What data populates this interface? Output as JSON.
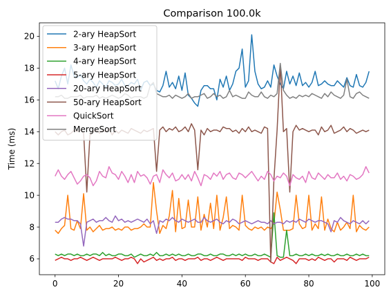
{
  "chart_data": {
    "type": "line",
    "title": "Comparison 100.0k",
    "xlabel": "",
    "ylabel": "Time (ms)",
    "xlim": [
      -4.95,
      103.95
    ],
    "ylim": [
      5.0,
      20.85
    ],
    "xticks": [
      0,
      20,
      40,
      60,
      80,
      100
    ],
    "yticks": [
      6,
      8,
      10,
      12,
      14,
      16,
      18,
      20
    ],
    "grid": false,
    "legend_position": "upper-left",
    "x": [
      0,
      1,
      2,
      3,
      4,
      5,
      6,
      7,
      8,
      9,
      10,
      11,
      12,
      13,
      14,
      15,
      16,
      17,
      18,
      19,
      20,
      21,
      22,
      23,
      24,
      25,
      26,
      27,
      28,
      29,
      30,
      31,
      32,
      33,
      34,
      35,
      36,
      37,
      38,
      39,
      40,
      41,
      42,
      43,
      44,
      45,
      46,
      47,
      48,
      49,
      50,
      51,
      52,
      53,
      54,
      55,
      56,
      57,
      58,
      59,
      60,
      61,
      62,
      63,
      64,
      65,
      66,
      67,
      68,
      69,
      70,
      71,
      72,
      73,
      74,
      75,
      76,
      77,
      78,
      79,
      80,
      81,
      82,
      83,
      84,
      85,
      86,
      87,
      88,
      89,
      90,
      91,
      92,
      93,
      94,
      95,
      96,
      97,
      98,
      99
    ],
    "series": [
      {
        "name": "2-ary HeapSort",
        "color": "#1f77b4",
        "values": [
          17.2,
          16.7,
          17.5,
          18.0,
          17.0,
          18.2,
          17.5,
          17.4,
          17.6,
          17.2,
          17.0,
          17.3,
          17.1,
          16.8,
          17.2,
          17.0,
          16.8,
          17.2,
          17.1,
          16.9,
          17.0,
          17.3,
          16.9,
          16.9,
          17.1,
          17.0,
          17.3,
          16.6,
          17.1,
          17.2,
          16.9,
          17.0,
          16.6,
          16.5,
          16.9,
          17.8,
          16.8,
          17.1,
          16.7,
          17.5,
          16.6,
          17.7,
          16.3,
          16.1,
          15.8,
          15.6,
          16.6,
          16.9,
          16.9,
          16.7,
          16.7,
          16.0,
          17.3,
          16.8,
          17.5,
          16.6,
          17.0,
          17.8,
          18.0,
          19.2,
          16.8,
          17.2,
          20.1,
          17.8,
          17.0,
          16.7,
          16.8,
          17.2,
          16.8,
          18.2,
          17.5,
          17.0,
          16.7,
          17.8,
          17.0,
          17.5,
          16.9,
          17.7,
          16.9,
          17.1,
          16.8,
          17.1,
          17.8,
          16.9,
          17.0,
          17.2,
          17.0,
          16.9,
          16.9,
          17.2,
          17.0,
          16.8,
          17.4,
          16.9,
          16.8,
          17.6,
          16.9,
          16.8,
          17.1,
          17.8
        ]
      },
      {
        "name": "3-ary HeapSort",
        "color": "#ff7f0e",
        "values": [
          7.8,
          7.6,
          7.9,
          8.1,
          10.0,
          7.9,
          7.8,
          8.4,
          7.9,
          10.1,
          7.8,
          8.0,
          7.7,
          7.9,
          8.1,
          7.8,
          7.9,
          7.9,
          8.0,
          7.8,
          7.9,
          7.8,
          8.0,
          8.0,
          7.8,
          7.9,
          7.9,
          8.0,
          8.2,
          8.0,
          8.0,
          10.8,
          9.0,
          7.6,
          8.1,
          7.9,
          8.7,
          10.3,
          7.7,
          9.8,
          7.9,
          8.0,
          9.7,
          8.0,
          8.0,
          9.9,
          7.8,
          8.8,
          8.0,
          9.5,
          7.9,
          10.0,
          7.8,
          8.6,
          9.9,
          7.9,
          8.1,
          8.0,
          7.8,
          10.0,
          8.1,
          7.9,
          7.8,
          8.0,
          7.9,
          8.0,
          7.8,
          8.0,
          7.9,
          8.2,
          10.2,
          9.1,
          7.8,
          7.8,
          7.8,
          7.9,
          10.0,
          8.2,
          7.9,
          8.0,
          10.0,
          7.8,
          8.2,
          7.9,
          9.9,
          7.8,
          8.5,
          7.9,
          7.7,
          8.3,
          7.8,
          8.0,
          8.3,
          7.9,
          10.0,
          7.7,
          8.1,
          7.9,
          7.8,
          8.0
        ]
      },
      {
        "name": "4-ary HeapSort",
        "color": "#2ca02c",
        "values": [
          6.3,
          6.2,
          6.3,
          6.2,
          6.3,
          6.3,
          6.2,
          6.3,
          6.2,
          6.2,
          6.3,
          6.2,
          6.3,
          6.3,
          6.2,
          6.4,
          6.2,
          6.3,
          6.2,
          6.2,
          6.3,
          6.3,
          6.2,
          6.2,
          6.3,
          6.1,
          6.2,
          6.3,
          6.2,
          6.2,
          6.3,
          6.2,
          6.4,
          6.2,
          6.2,
          6.3,
          6.2,
          6.3,
          6.2,
          6.3,
          6.2,
          6.2,
          6.3,
          6.2,
          6.2,
          6.3,
          6.3,
          6.2,
          6.2,
          6.3,
          6.2,
          6.2,
          6.3,
          6.3,
          6.2,
          6.2,
          6.3,
          6.2,
          6.3,
          6.2,
          6.3,
          6.2,
          6.2,
          6.3,
          6.2,
          6.2,
          6.3,
          6.2,
          6.1,
          8.9,
          6.2,
          6.1,
          6.1,
          7.8,
          6.2,
          6.2,
          6.3,
          6.2,
          6.2,
          6.3,
          6.2,
          6.3,
          6.2,
          6.2,
          6.3,
          6.2,
          6.3,
          6.2,
          6.2,
          6.3,
          6.2,
          6.2,
          6.3,
          6.2,
          6.2,
          6.3,
          6.2,
          6.3,
          6.2,
          6.2
        ]
      },
      {
        "name": "5-ary HeapSort",
        "color": "#d62728",
        "values": [
          5.9,
          6.0,
          6.1,
          6.0,
          6.0,
          5.9,
          6.0,
          6.0,
          6.1,
          6.0,
          5.9,
          6.0,
          6.1,
          6.0,
          5.9,
          6.0,
          6.0,
          6.0,
          6.0,
          6.1,
          6.0,
          5.9,
          6.0,
          6.0,
          6.1,
          6.0,
          5.7,
          6.0,
          5.8,
          5.9,
          6.0,
          6.1,
          5.9,
          6.0,
          5.9,
          6.0,
          6.0,
          6.1,
          5.9,
          6.0,
          6.0,
          5.9,
          6.0,
          6.0,
          6.0,
          6.1,
          5.9,
          6.0,
          6.0,
          5.9,
          6.0,
          6.1,
          6.0,
          5.9,
          6.0,
          6.0,
          6.0,
          6.0,
          6.0,
          5.9,
          6.1,
          6.0,
          6.0,
          6.0,
          5.9,
          6.0,
          6.0,
          6.0,
          5.8,
          5.7,
          6.1,
          5.9,
          6.0,
          6.1,
          6.0,
          5.9,
          5.7,
          6.0,
          6.0,
          6.0,
          5.9,
          6.0,
          5.9,
          6.1,
          6.0,
          5.9,
          6.0,
          6.0,
          5.8,
          6.0,
          6.0,
          6.0,
          5.9,
          6.1,
          6.0,
          5.9,
          6.0,
          6.0,
          6.0,
          6.1
        ]
      },
      {
        "name": "20-ary HeapSort",
        "color": "#9467bd",
        "values": [
          8.3,
          8.3,
          8.5,
          8.6,
          8.5,
          8.5,
          8.4,
          8.4,
          8.2,
          6.8,
          8.3,
          8.4,
          8.5,
          8.3,
          8.4,
          8.4,
          8.6,
          8.4,
          8.3,
          8.7,
          8.4,
          8.5,
          8.3,
          8.4,
          8.3,
          8.4,
          8.5,
          8.4,
          8.3,
          8.5,
          8.2,
          8.4,
          7.6,
          8.4,
          8.3,
          8.5,
          8.4,
          8.6,
          8.4,
          8.3,
          8.5,
          8.4,
          8.3,
          8.4,
          8.5,
          8.3,
          8.3,
          8.6,
          8.4,
          8.3,
          8.4,
          8.5,
          8.3,
          8.2,
          8.4,
          8.3,
          8.5,
          8.4,
          8.2,
          8.3,
          8.4,
          8.3,
          8.2,
          8.3,
          8.4,
          8.3,
          8.3,
          8.2,
          8.4,
          8.2,
          8.3,
          8.3,
          8.2,
          8.4,
          8.3,
          8.4,
          8.3,
          8.5,
          8.4,
          8.3,
          8.5,
          8.4,
          8.3,
          8.4,
          8.4,
          8.3,
          8.2,
          7.7,
          8.4,
          8.3,
          8.6,
          8.4,
          8.3,
          8.2,
          8.4,
          8.3,
          8.2,
          8.4,
          8.2,
          8.4
        ]
      },
      {
        "name": "50-ary HeapSort",
        "color": "#8c564b",
        "values": [
          14.0,
          13.8,
          14.0,
          14.1,
          13.8,
          13.9,
          14.1,
          14.0,
          14.1,
          13.9,
          10.2,
          13.8,
          14.0,
          14.1,
          13.9,
          14.1,
          14.0,
          14.2,
          13.8,
          14.1,
          13.9,
          14.1,
          14.0,
          13.9,
          14.2,
          14.1,
          14.0,
          13.9,
          14.1,
          14.0,
          14.1,
          14.2,
          11.5,
          14.1,
          14.3,
          14.0,
          14.2,
          14.1,
          14.3,
          14.0,
          14.1,
          14.3,
          14.0,
          14.5,
          14.1,
          11.6,
          14.1,
          13.8,
          14.2,
          14.0,
          14.1,
          14.1,
          14.0,
          14.3,
          14.2,
          14.2,
          14.0,
          14.1,
          13.9,
          14.2,
          14.0,
          14.3,
          14.0,
          14.1,
          14.0,
          13.9,
          14.3,
          14.2,
          5.8,
          11.0,
          14.1,
          18.2,
          14.0,
          14.2,
          10.2,
          14.0,
          14.4,
          14.1,
          14.2,
          14.1,
          14.0,
          14.1,
          14.1,
          13.8,
          14.3,
          14.0,
          14.1,
          14.4,
          13.9,
          14.0,
          14.1,
          14.3,
          14.0,
          14.2,
          14.1,
          13.9,
          14.0,
          14.1,
          14.0,
          14.1
        ]
      },
      {
        "name": "QuickSort",
        "color": "#e377c2",
        "values": [
          11.2,
          11.6,
          11.2,
          11.0,
          11.3,
          11.5,
          11.1,
          10.7,
          10.9,
          11.2,
          11.3,
          11.1,
          10.6,
          10.9,
          11.5,
          11.2,
          11.1,
          11.8,
          11.4,
          11.3,
          11.0,
          11.5,
          11.2,
          10.8,
          11.3,
          10.8,
          11.5,
          11.2,
          11.3,
          11.1,
          10.7,
          11.2,
          11.3,
          10.8,
          11.6,
          11.3,
          11.1,
          11.4,
          10.9,
          11.0,
          11.3,
          11.0,
          11.3,
          10.9,
          11.5,
          11.1,
          10.6,
          11.3,
          11.2,
          11.0,
          11.4,
          11.2,
          11.5,
          11.0,
          11.3,
          11.4,
          11.1,
          11.0,
          11.4,
          11.3,
          11.1,
          11.3,
          11.5,
          11.2,
          10.9,
          11.2,
          11.0,
          11.5,
          11.3,
          10.9,
          11.2,
          11.1,
          11.4,
          11.2,
          10.6,
          11.3,
          11.1,
          11.0,
          11.2,
          10.8,
          11.5,
          11.1,
          11.0,
          11.4,
          11.2,
          11.0,
          11.3,
          11.1,
          11.1,
          11.4,
          11.0,
          11.2,
          10.9,
          11.3,
          11.2,
          11.0,
          11.1,
          11.3,
          11.8,
          11.4
        ]
      },
      {
        "name": "MergeSort",
        "color": "#7f7f7f",
        "values": [
          16.2,
          16.2,
          16.3,
          16.1,
          16.1,
          16.2,
          16.2,
          16.2,
          16.3,
          16.1,
          16.2,
          16.2,
          16.2,
          16.3,
          16.1,
          16.2,
          16.1,
          16.2,
          16.3,
          16.2,
          16.1,
          16.2,
          16.4,
          16.3,
          16.1,
          16.2,
          16.2,
          16.2,
          16.1,
          16.2,
          16.9,
          17.1,
          16.4,
          16.3,
          16.2,
          16.2,
          16.3,
          16.1,
          16.3,
          16.2,
          16.1,
          16.2,
          16.4,
          16.1,
          16.2,
          16.2,
          16.3,
          16.4,
          16.1,
          16.2,
          16.4,
          16.2,
          16.3,
          16.1,
          16.2,
          16.6,
          16.2,
          16.3,
          16.2,
          16.1,
          16.1,
          16.5,
          16.3,
          16.2,
          16.2,
          16.5,
          16.2,
          16.1,
          16.3,
          16.2,
          16.4,
          18.3,
          16.6,
          16.3,
          16.1,
          16.2,
          16.1,
          16.3,
          16.2,
          16.3,
          16.2,
          16.4,
          16.3,
          16.2,
          16.1,
          16.4,
          16.2,
          16.5,
          16.3,
          16.2,
          16.1,
          16.3,
          17.3,
          16.2,
          16.1,
          16.4,
          16.5,
          16.3,
          16.2,
          16.1
        ]
      }
    ]
  }
}
